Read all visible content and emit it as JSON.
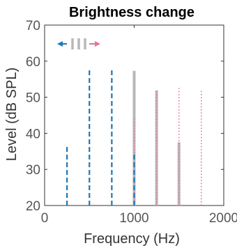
{
  "chart_data": {
    "type": "bar",
    "title": "Brightness change",
    "xlabel": "Frequency (Hz)",
    "ylabel": "Level (dB SPL)",
    "xlim": [
      0,
      2000
    ],
    "ylim": [
      20,
      70
    ],
    "xticks": [
      0,
      1000,
      2000
    ],
    "yticks": [
      20,
      30,
      40,
      50,
      60,
      70
    ],
    "grid": false,
    "series": [
      {
        "style": "dashed",
        "color": "#1f77b4",
        "x": [
          250,
          500,
          750,
          1000
        ],
        "values": [
          36.8,
          57.8,
          57.8,
          34.2
        ]
      },
      {
        "style": "solid",
        "color": "#b8b8b8",
        "x": [
          1000,
          1250,
          1500
        ],
        "values": [
          57.3,
          51.9,
          37.5
        ]
      },
      {
        "style": "dotted",
        "color": "#e8709f",
        "x": [
          1000,
          1250,
          1500,
          1750
        ],
        "values": [
          44.0,
          51.9,
          53.0,
          51.9
        ]
      }
    ],
    "legend": {
      "placement": "top-left",
      "arrow_left_color": "#1f77b4",
      "arrow_right_color": "#e8709f",
      "bars_color": "#b8b8b8"
    }
  }
}
